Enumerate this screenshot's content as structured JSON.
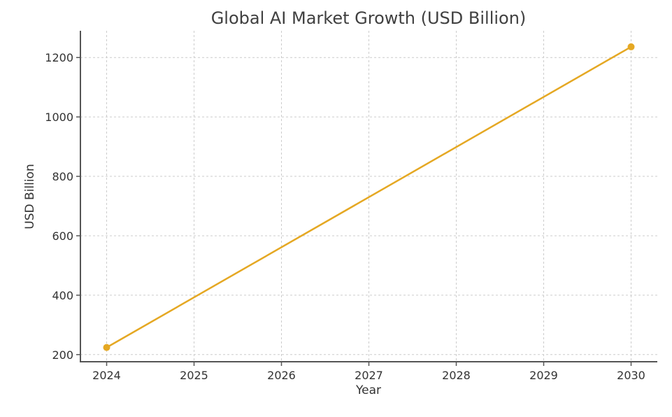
{
  "chart_data": {
    "type": "line",
    "title": "Global AI Market Growth (USD Billion)",
    "xlabel": "Year",
    "ylabel": "USD Billion",
    "x": [
      2024,
      2030
    ],
    "series": [
      {
        "values": [
          224,
          1236
        ]
      }
    ],
    "x_ticks": [
      "2024",
      "2025",
      "2026",
      "2027",
      "2028",
      "2029",
      "2030"
    ],
    "y_ticks": [
      "200",
      "400",
      "600",
      "800",
      "1000",
      "1200"
    ],
    "xlim": [
      2023.7,
      2030.3
    ],
    "ylim": [
      176,
      1290
    ],
    "grid": true,
    "colors": {
      "line": "#E5A823",
      "marker": "#E5A823"
    }
  }
}
